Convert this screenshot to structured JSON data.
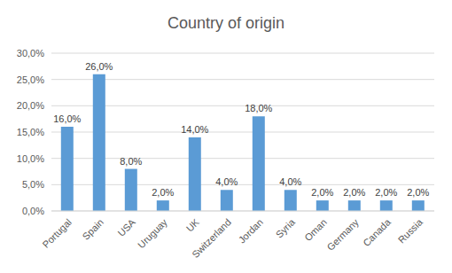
{
  "chart_data": {
    "type": "bar",
    "title": "Country of origin",
    "categories": [
      "Portugal",
      "Spain",
      "USA",
      "Uruguay",
      "UK",
      "Switzerland",
      "Jordan",
      "Syria",
      "Oman",
      "Germany",
      "Canada",
      "Russia"
    ],
    "values": [
      16,
      26,
      8,
      2,
      14,
      4,
      18,
      4,
      2,
      2,
      2,
      2
    ],
    "value_labels": [
      "16,0%",
      "26,0%",
      "8,0%",
      "2,0%",
      "14,0%",
      "4,0%",
      "18,0%",
      "4,0%",
      "2,0%",
      "2,0%",
      "2,0%",
      "2,0%"
    ],
    "color": "#5b9bd5",
    "ylim": [
      0,
      30
    ],
    "yticks": [
      {
        "value": 0,
        "label": "0,0%"
      },
      {
        "value": 5,
        "label": "5,0%"
      },
      {
        "value": 10,
        "label": "10,0%"
      },
      {
        "value": 15,
        "label": "15,0%"
      },
      {
        "value": 20,
        "label": "20,0%"
      },
      {
        "value": 25,
        "label": "25,0%"
      },
      {
        "value": 30,
        "label": "30,0%"
      }
    ],
    "grid": true,
    "data_labels": true
  }
}
